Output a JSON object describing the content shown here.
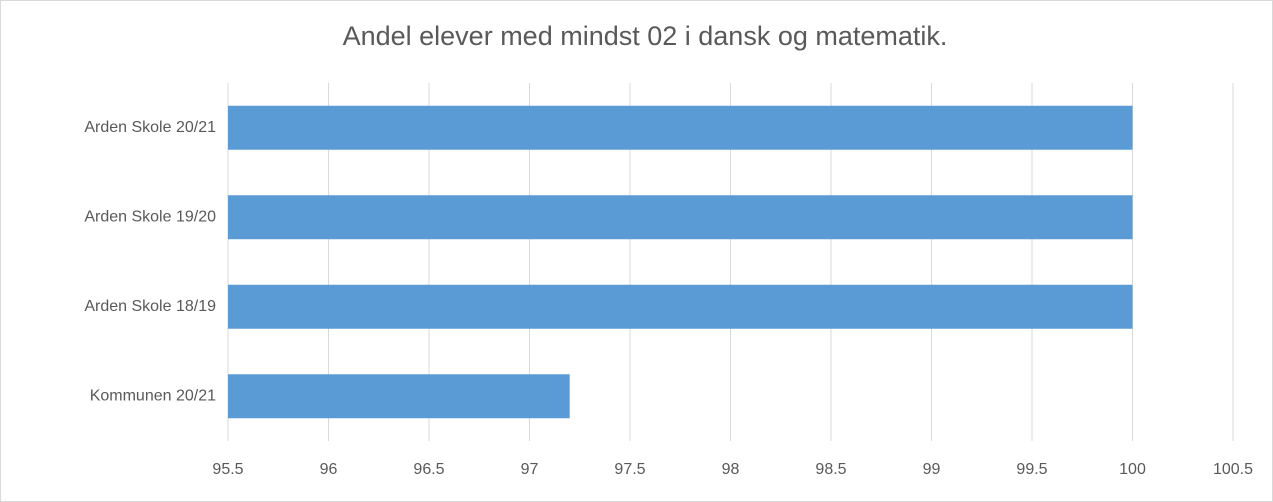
{
  "chart_data": {
    "type": "bar",
    "orientation": "horizontal",
    "title": "Andel elever med mindst 02 i dansk og matematik.",
    "categories": [
      "Arden Skole 20/21",
      "Arden Skole 19/20",
      "Arden Skole 18/19",
      "Kommunen 20/21"
    ],
    "values": [
      100,
      100,
      100,
      97.2
    ],
    "color": "#5b9bd5",
    "xlim": [
      95.5,
      100.5
    ],
    "xticks": [
      95.5,
      96,
      96.5,
      97,
      97.5,
      98,
      98.5,
      99,
      99.5,
      100,
      100.5
    ],
    "grid": true
  }
}
